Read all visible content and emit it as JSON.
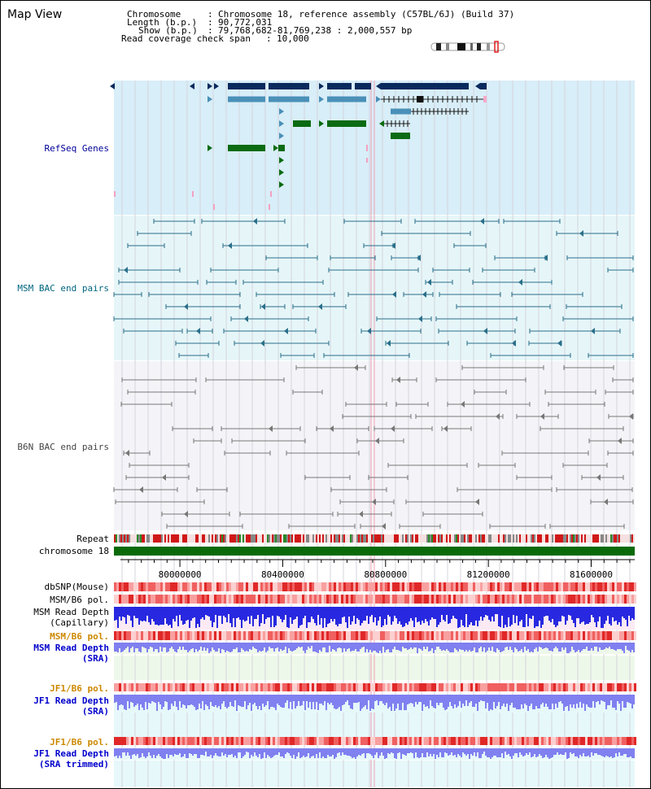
{
  "app": {
    "title": "Map View"
  },
  "header": {
    "chromosome_key": "Chromosome",
    "chromosome_val": "Chromosome 18, reference assembly (C57BL/6J) (Build 37)",
    "length_key": "Length (b.p.)",
    "length_val": "90,772,031",
    "show_key": "Show (b.p.)",
    "show_val": "79,768,682-81,769,238 : 2,000,557 bp",
    "coverage_key": "Read coverage check span",
    "coverage_val": "10,000"
  },
  "tracks": {
    "refseq": "RefSeq Genes",
    "msm_bac": "MSM BAC end pairs",
    "b6n_bac": "B6N BAC end pairs",
    "repeat": "Repeat",
    "chromosome": "chromosome 18",
    "dbsnp": "dbSNP(Mouse)",
    "msm_b6_pol_1": "MSM/B6 pol.",
    "msm_read_depth_cap_1": "MSM Read Depth",
    "msm_read_depth_cap_2": "(Capillary)",
    "msm_b6_pol_2": "MSM/B6 pol.",
    "msm_read_depth_sra_1": "MSM Read Depth",
    "msm_read_depth_sra_2": "(SRA)",
    "jf1_b6_pol_1": "JF1/B6 pol.",
    "jf1_read_depth_1": "JF1 Read Depth",
    "jf1_read_depth_2": "(SRA)",
    "jf1_b6_pol_2": "JF1/B6 pol.",
    "jf1_read_depth_trim_1": "JF1 Read Depth",
    "jf1_read_depth_trim_2": "(SRA trimmed)"
  },
  "axis": {
    "ticks": [
      {
        "label": "80000000",
        "value": 80000000
      },
      {
        "label": "80400000",
        "value": 80400000
      },
      {
        "label": "80800000",
        "value": 80800000
      },
      {
        "label": "81200000",
        "value": 81200000
      },
      {
        "label": "81600000",
        "value": 81600000
      }
    ],
    "start": 79768682,
    "end": 81769238
  },
  "colors": {
    "refseq_bg": "#d8eef8",
    "msm_bg": "#e6f6f8",
    "b6n_bg": "#f4f4f8",
    "gene_navy": "#0a2a5e",
    "gene_steel": "#4a90b8",
    "gene_green": "#0b6b12",
    "msm_line": "#2a6f8a",
    "b6n_line": "#777777",
    "chromosome_bar": "#0a6a0a",
    "snp_red": "#e84040",
    "depth_blue": "#2828e0",
    "depth_light": "#8080f0"
  }
}
